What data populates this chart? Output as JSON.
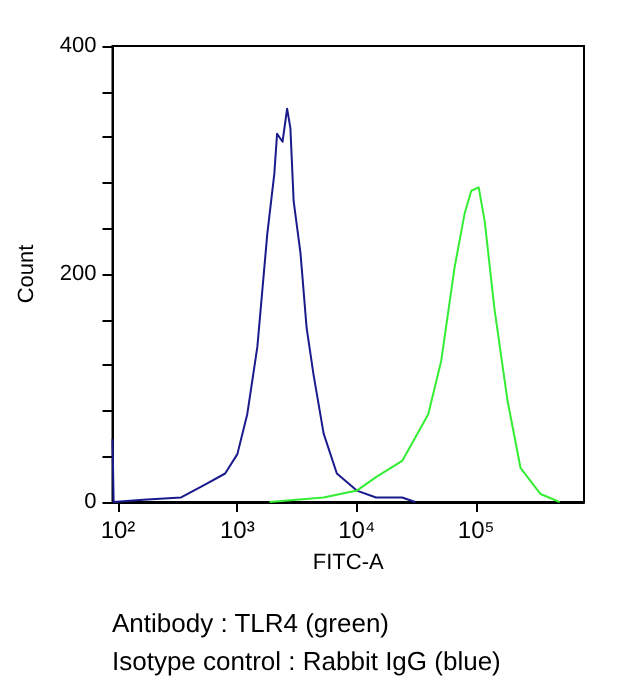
{
  "chart_data": {
    "type": "line",
    "xlabel": "FITC-A",
    "ylabel": "Count",
    "log": "x",
    "marker": "none",
    "grid": false,
    "xlim": [
      90,
      800000
    ],
    "xticks": [
      {
        "value": 100,
        "label": "10²"
      },
      {
        "value": 1000,
        "label": "10³"
      },
      {
        "value": 10000,
        "label": "10⁴"
      },
      {
        "value": 100000,
        "label": "10⁵"
      }
    ],
    "ylim": [
      0,
      400
    ],
    "yticks": [
      0,
      {
        "value": 40,
        "label": null
      },
      {
        "value": 80,
        "label": null
      },
      {
        "value": 120,
        "label": null
      },
      {
        "value": 160,
        "label": null
      },
      200,
      {
        "value": 240,
        "label": null
      },
      {
        "value": 280,
        "label": null
      },
      {
        "value": 320,
        "label": null
      },
      {
        "value": 360,
        "label": null
      },
      400
    ],
    "series": [
      {
        "color": "#1a1a8c",
        "x": [
          90,
          92,
          163,
          338,
          550,
          790,
          1000,
          1210,
          1470,
          1780,
          2040,
          2150,
          2390,
          2610,
          2780,
          2960,
          3380,
          3800,
          4340,
          5280,
          6810,
          10000,
          14500,
          24000,
          30900
        ],
        "values": [
          55,
          0,
          2,
          4,
          16,
          25,
          42,
          77,
          136,
          235,
          288,
          323,
          316,
          345,
          328,
          264,
          218,
          153,
          112,
          60,
          25,
          10,
          4,
          4,
          0
        ]
      },
      {
        "color": "#33ee33",
        "x": [
          1860,
          5280,
          10000,
          14600,
          24000,
          39700,
          51000,
          66000,
          80000,
          91000,
          105000,
          118000,
          142000,
          183000,
          235000,
          346000,
          500000
        ],
        "values": [
          0,
          4,
          10,
          22,
          36,
          77,
          124,
          206,
          253,
          273,
          276,
          246,
          170,
          89,
          30,
          7,
          0
        ]
      }
    ],
    "annotations": [
      "Antibody : TLR4 (green)",
      "Isotype control : Rabbit IgG (blue)"
    ]
  }
}
